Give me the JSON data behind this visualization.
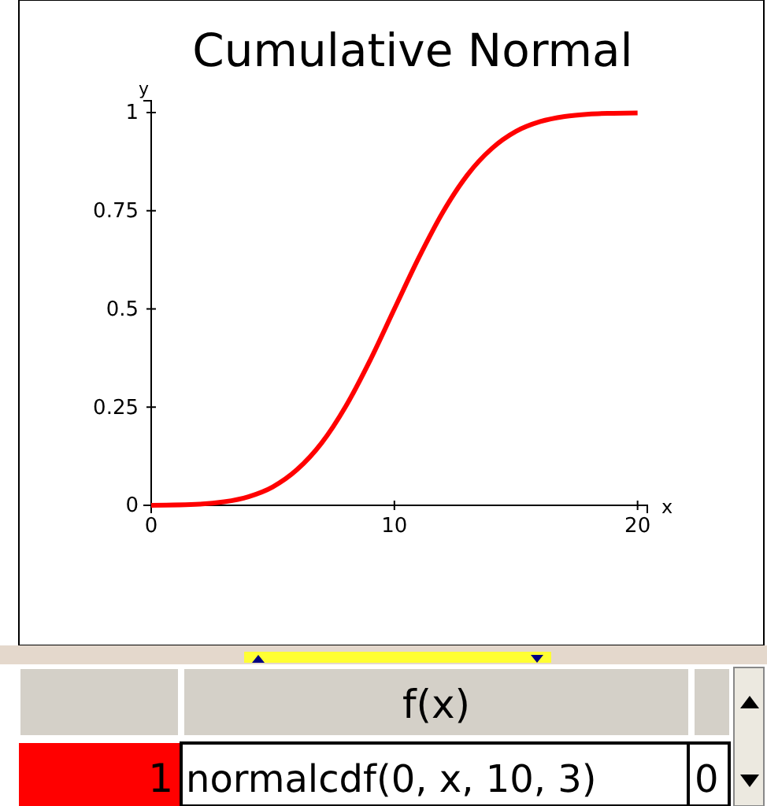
{
  "chart_data": {
    "type": "line",
    "title": "Cumulative Normal",
    "xlabel": "x",
    "ylabel": "y",
    "x": [
      0,
      2,
      3,
      4,
      5,
      6,
      7,
      8,
      9,
      10,
      11,
      12,
      13,
      14,
      15,
      16,
      17,
      18,
      19,
      20
    ],
    "series": [
      {
        "color": "#ff0000",
        "values": [
          0,
          0.003,
          0.009,
          0.022,
          0.047,
          0.091,
          0.158,
          0.252,
          0.369,
          0.5,
          0.63,
          0.747,
          0.841,
          0.908,
          0.952,
          0.977,
          0.99,
          0.996,
          0.998,
          0.999
        ]
      }
    ],
    "xlim": [
      0,
      20.4
    ],
    "ylim": [
      0,
      1.03
    ],
    "xticks": [
      0,
      10,
      20
    ],
    "yticks": [
      0,
      0.25,
      0.5,
      0.75,
      1
    ],
    "grid": false,
    "marker": "none",
    "line_style": "solid",
    "annotations": [
      "f(x)",
      "1",
      "normalcdf(0, x, 10, 3)",
      "0"
    ]
  }
}
